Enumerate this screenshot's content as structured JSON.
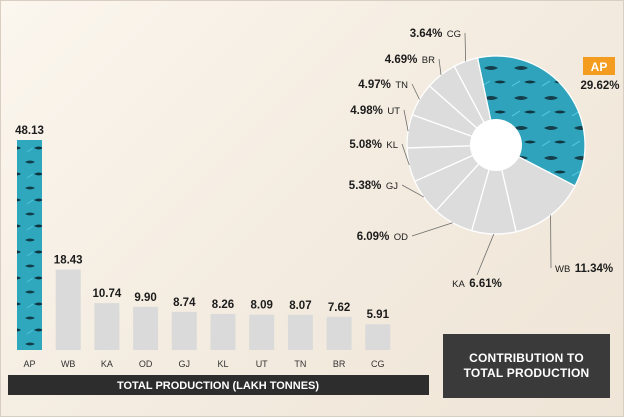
{
  "chart_data": [
    {
      "type": "bar",
      "xlabel": "TOTAL PRODUCTION (LAKH TONNES)",
      "categories": [
        "AP",
        "WB",
        "KA",
        "OD",
        "GJ",
        "KL",
        "UT",
        "TN",
        "BR",
        "CG"
      ],
      "values": [
        48.13,
        18.43,
        10.74,
        9.9,
        8.74,
        8.26,
        8.09,
        8.07,
        7.62,
        5.91
      ],
      "value_labels": [
        "48.13",
        "18.43",
        "10.74",
        "9.90",
        "8.74",
        "8.26",
        "8.09",
        "8.07",
        "7.62",
        "5.91"
      ],
      "highlight_category": "AP",
      "colors": {
        "bar": "#dadada",
        "highlight": "#2fa7bd",
        "axis_band": "#2d2d2d"
      }
    },
    {
      "type": "pie",
      "title_lines": [
        "CONTRIBUTION TO",
        "TOTAL PRODUCTION"
      ],
      "slices": [
        {
          "label": "AP",
          "value": 29.62,
          "value_label": "29.62%"
        },
        {
          "label": "WB",
          "value": 11.34,
          "value_label": "11.34%"
        },
        {
          "label": "KA",
          "value": 6.61,
          "value_label": "6.61%"
        },
        {
          "label": "OD",
          "value": 6.09,
          "value_label": "6.09%"
        },
        {
          "label": "GJ",
          "value": 5.38,
          "value_label": "5.38%"
        },
        {
          "label": "KL",
          "value": 5.08,
          "value_label": "5.08%"
        },
        {
          "label": "UT",
          "value": 4.98,
          "value_label": "4.98%"
        },
        {
          "label": "TN",
          "value": 4.97,
          "value_label": "4.97%"
        },
        {
          "label": "BR",
          "value": 4.69,
          "value_label": "4.69%"
        },
        {
          "label": "CG",
          "value": 3.64,
          "value_label": "3.64%"
        }
      ],
      "colors": {
        "slice": "#dcdcdc",
        "highlight": "#2fa7bd",
        "highlight_label_bg": "#f39c1f"
      }
    }
  ]
}
